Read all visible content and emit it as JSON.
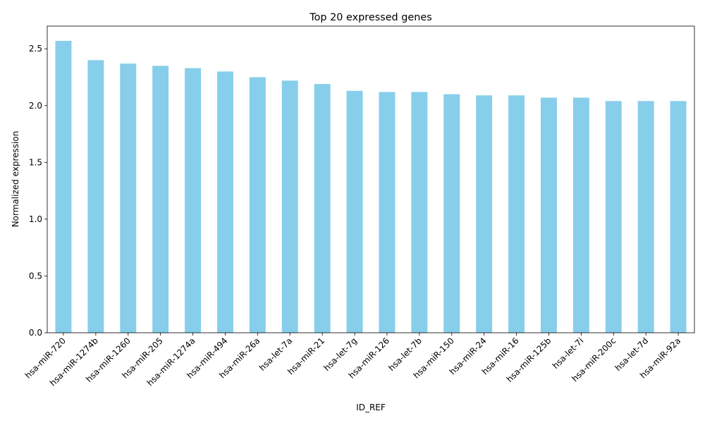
{
  "chart_data": {
    "type": "bar",
    "title": "Top 20 expressed genes",
    "xlabel": "ID_REF",
    "ylabel": "Normalized expression",
    "categories": [
      "hsa-miR-720",
      "hsa-miR-1274b",
      "hsa-miR-1260",
      "hsa-miR-205",
      "hsa-miR-1274a",
      "hsa-miR-494",
      "hsa-miR-26a",
      "hsa-let-7a",
      "hsa-miR-21",
      "hsa-let-7g",
      "hsa-miR-126",
      "hsa-let-7b",
      "hsa-miR-150",
      "hsa-miR-24",
      "hsa-miR-16",
      "hsa-miR-125b",
      "hsa-let-7i",
      "hsa-miR-200c",
      "hsa-let-7d",
      "hsa-miR-92a"
    ],
    "values": [
      2.57,
      2.4,
      2.37,
      2.35,
      2.33,
      2.3,
      2.25,
      2.22,
      2.19,
      2.13,
      2.12,
      2.12,
      2.1,
      2.09,
      2.09,
      2.07,
      2.07,
      2.04,
      2.04,
      2.04
    ],
    "ylim": [
      0,
      2.7
    ],
    "yticks": [
      "0.0",
      "0.5",
      "1.0",
      "1.5",
      "2.0",
      "2.5"
    ],
    "bar_color": "#87ceeb",
    "grid": false,
    "legend": "none"
  }
}
